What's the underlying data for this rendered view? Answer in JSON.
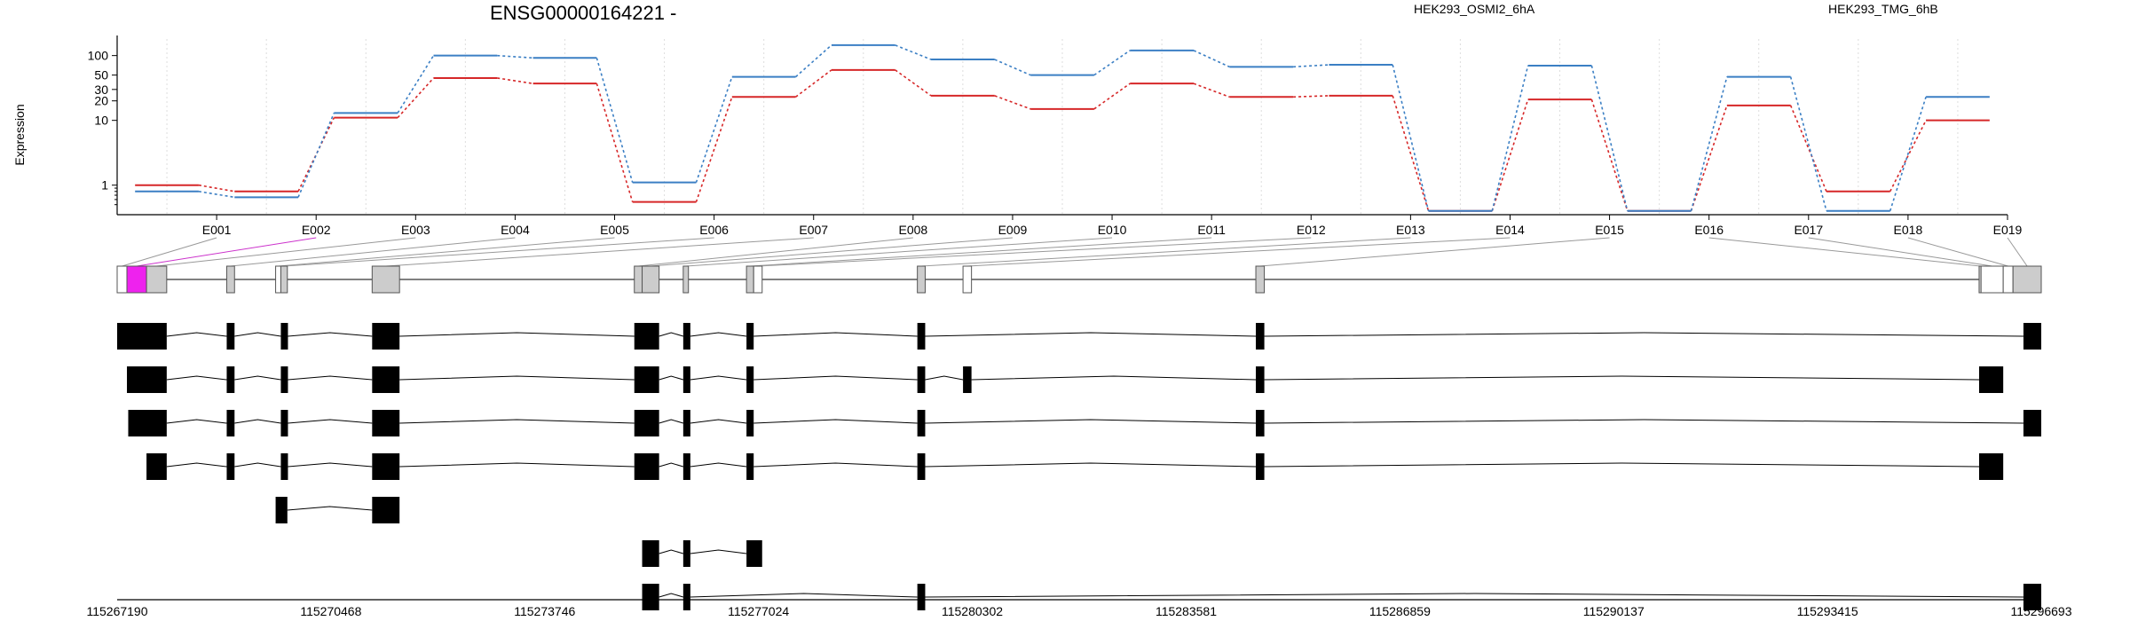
{
  "title": "ENSG00000164221 -",
  "ylabel": "Expression",
  "legend": [
    {
      "name": "HEK293_OSMI2_6hA",
      "color": "#d62728"
    },
    {
      "name": "HEK293_TMG_6hB",
      "color": "#3b7fc4"
    }
  ],
  "colors": {
    "highlight": "#ee22ee",
    "exon_box": "#cccccc",
    "transcript": "#000000",
    "axis": "#000000",
    "connector_gray": "#999999",
    "connector_magenta": "#cc33cc"
  },
  "chart_data": {
    "type": "line",
    "title": "ENSG00000164221 -",
    "ylabel": "Expression",
    "yscale": "log",
    "yticks": [
      1,
      10,
      20,
      30,
      50,
      100
    ],
    "ylim": [
      0.35,
      180
    ],
    "categories": [
      "E001",
      "E002",
      "E003",
      "E004",
      "E005",
      "E006",
      "E007",
      "E008",
      "E009",
      "E010",
      "E011",
      "E012",
      "E013",
      "E014",
      "E015",
      "E016",
      "E017",
      "E018",
      "E019"
    ],
    "series": [
      {
        "name": "HEK293_OSMI2_6hA",
        "color": "#d62728",
        "values": [
          1.0,
          0.8,
          11,
          45,
          37,
          0.55,
          23,
          60,
          24,
          15,
          37,
          23,
          24,
          0.4,
          21,
          0.4,
          17,
          0.8,
          10
        ]
      },
      {
        "name": "HEK293_TMG_6hB",
        "color": "#3b7fc4",
        "values": [
          0.8,
          0.65,
          13,
          100,
          92,
          1.1,
          47,
          145,
          87,
          50,
          120,
          67,
          72,
          0.4,
          70,
          0.4,
          47,
          0.4,
          23
        ]
      }
    ]
  },
  "genome_axis": {
    "min": 115267190,
    "max": 115296693,
    "ticks": [
      "115267190",
      "115270468",
      "115273746",
      "115277024",
      "115280302",
      "115283581",
      "115286859",
      "115290137",
      "115293415",
      "115296693"
    ]
  },
  "exon_model": {
    "exons": [
      {
        "id": "E001",
        "start": 115267190,
        "end": 115267340,
        "fill": "white"
      },
      {
        "id": "E002",
        "start": 115267340,
        "end": 115267640,
        "fill": "magenta"
      },
      {
        "id": "E003",
        "start": 115267640,
        "end": 115267950,
        "fill": "grey"
      },
      {
        "id": "E004",
        "start": 115268870,
        "end": 115268990,
        "fill": "grey"
      },
      {
        "id": "E005",
        "start": 115269620,
        "end": 115269700,
        "fill": "white"
      },
      {
        "id": "E006",
        "start": 115269700,
        "end": 115269800,
        "fill": "grey"
      },
      {
        "id": "E007",
        "start": 115271100,
        "end": 115271520,
        "fill": "grey"
      },
      {
        "id": "E008",
        "start": 115275120,
        "end": 115275240,
        "fill": "grey"
      },
      {
        "id": "E009",
        "start": 115275240,
        "end": 115275500,
        "fill": "grey"
      },
      {
        "id": "E010",
        "start": 115275870,
        "end": 115275950,
        "fill": "grey"
      },
      {
        "id": "E011",
        "start": 115276840,
        "end": 115276950,
        "fill": "grey"
      },
      {
        "id": "E012",
        "start": 115276950,
        "end": 115277080,
        "fill": "white"
      },
      {
        "id": "E013",
        "start": 115279460,
        "end": 115279580,
        "fill": "grey"
      },
      {
        "id": "E014",
        "start": 115280160,
        "end": 115280290,
        "fill": "white"
      },
      {
        "id": "E015",
        "start": 115284650,
        "end": 115284780,
        "fill": "grey"
      },
      {
        "id": "E016",
        "start": 115295740,
        "end": 115295770,
        "fill": "grey"
      },
      {
        "id": "E017",
        "start": 115295770,
        "end": 115296110,
        "fill": "white"
      },
      {
        "id": "E018",
        "start": 115296110,
        "end": 115296260,
        "fill": "white"
      },
      {
        "id": "E019",
        "start": 115296260,
        "end": 115296693,
        "fill": "grey"
      }
    ]
  },
  "transcripts": [
    {
      "exons": [
        [
          115267190,
          115267950
        ],
        [
          115268870,
          115268990
        ],
        [
          115269700,
          115269800
        ],
        [
          115271100,
          115271520
        ],
        [
          115275120,
          115275500
        ],
        [
          115275870,
          115275950
        ],
        [
          115276840,
          115276950
        ],
        [
          115279460,
          115279580
        ],
        [
          115284650,
          115284780
        ],
        [
          115296420,
          115296693
        ]
      ]
    },
    {
      "exons": [
        [
          115267340,
          115267950
        ],
        [
          115268870,
          115268990
        ],
        [
          115269700,
          115269800
        ],
        [
          115271100,
          115271520
        ],
        [
          115275120,
          115275500
        ],
        [
          115275870,
          115275950
        ],
        [
          115276840,
          115276950
        ],
        [
          115279460,
          115279580
        ],
        [
          115280160,
          115280290
        ],
        [
          115284650,
          115284780
        ],
        [
          115295740,
          115296110
        ]
      ]
    },
    {
      "exons": [
        [
          115267360,
          115267950
        ],
        [
          115268870,
          115268990
        ],
        [
          115269700,
          115269800
        ],
        [
          115271100,
          115271520
        ],
        [
          115275120,
          115275500
        ],
        [
          115275870,
          115275950
        ],
        [
          115276840,
          115276950
        ],
        [
          115279460,
          115279580
        ],
        [
          115284650,
          115284780
        ],
        [
          115296420,
          115296693
        ]
      ]
    },
    {
      "exons": [
        [
          115267640,
          115267950
        ],
        [
          115268870,
          115268990
        ],
        [
          115269700,
          115269800
        ],
        [
          115271100,
          115271520
        ],
        [
          115275120,
          115275500
        ],
        [
          115275870,
          115275950
        ],
        [
          115276840,
          115276950
        ],
        [
          115279460,
          115279580
        ],
        [
          115284650,
          115284780
        ],
        [
          115295740,
          115296110
        ]
      ]
    },
    {
      "exons": [
        [
          115269620,
          115269800
        ],
        [
          115271100,
          115271520
        ]
      ]
    },
    {
      "exons": [
        [
          115275240,
          115275500
        ],
        [
          115275870,
          115275950
        ],
        [
          115276840,
          115277080
        ]
      ]
    },
    {
      "exons": [
        [
          115275240,
          115275500
        ],
        [
          115275870,
          115275950
        ],
        [
          115279460,
          115279580
        ],
        [
          115296420,
          115296693
        ]
      ]
    }
  ]
}
